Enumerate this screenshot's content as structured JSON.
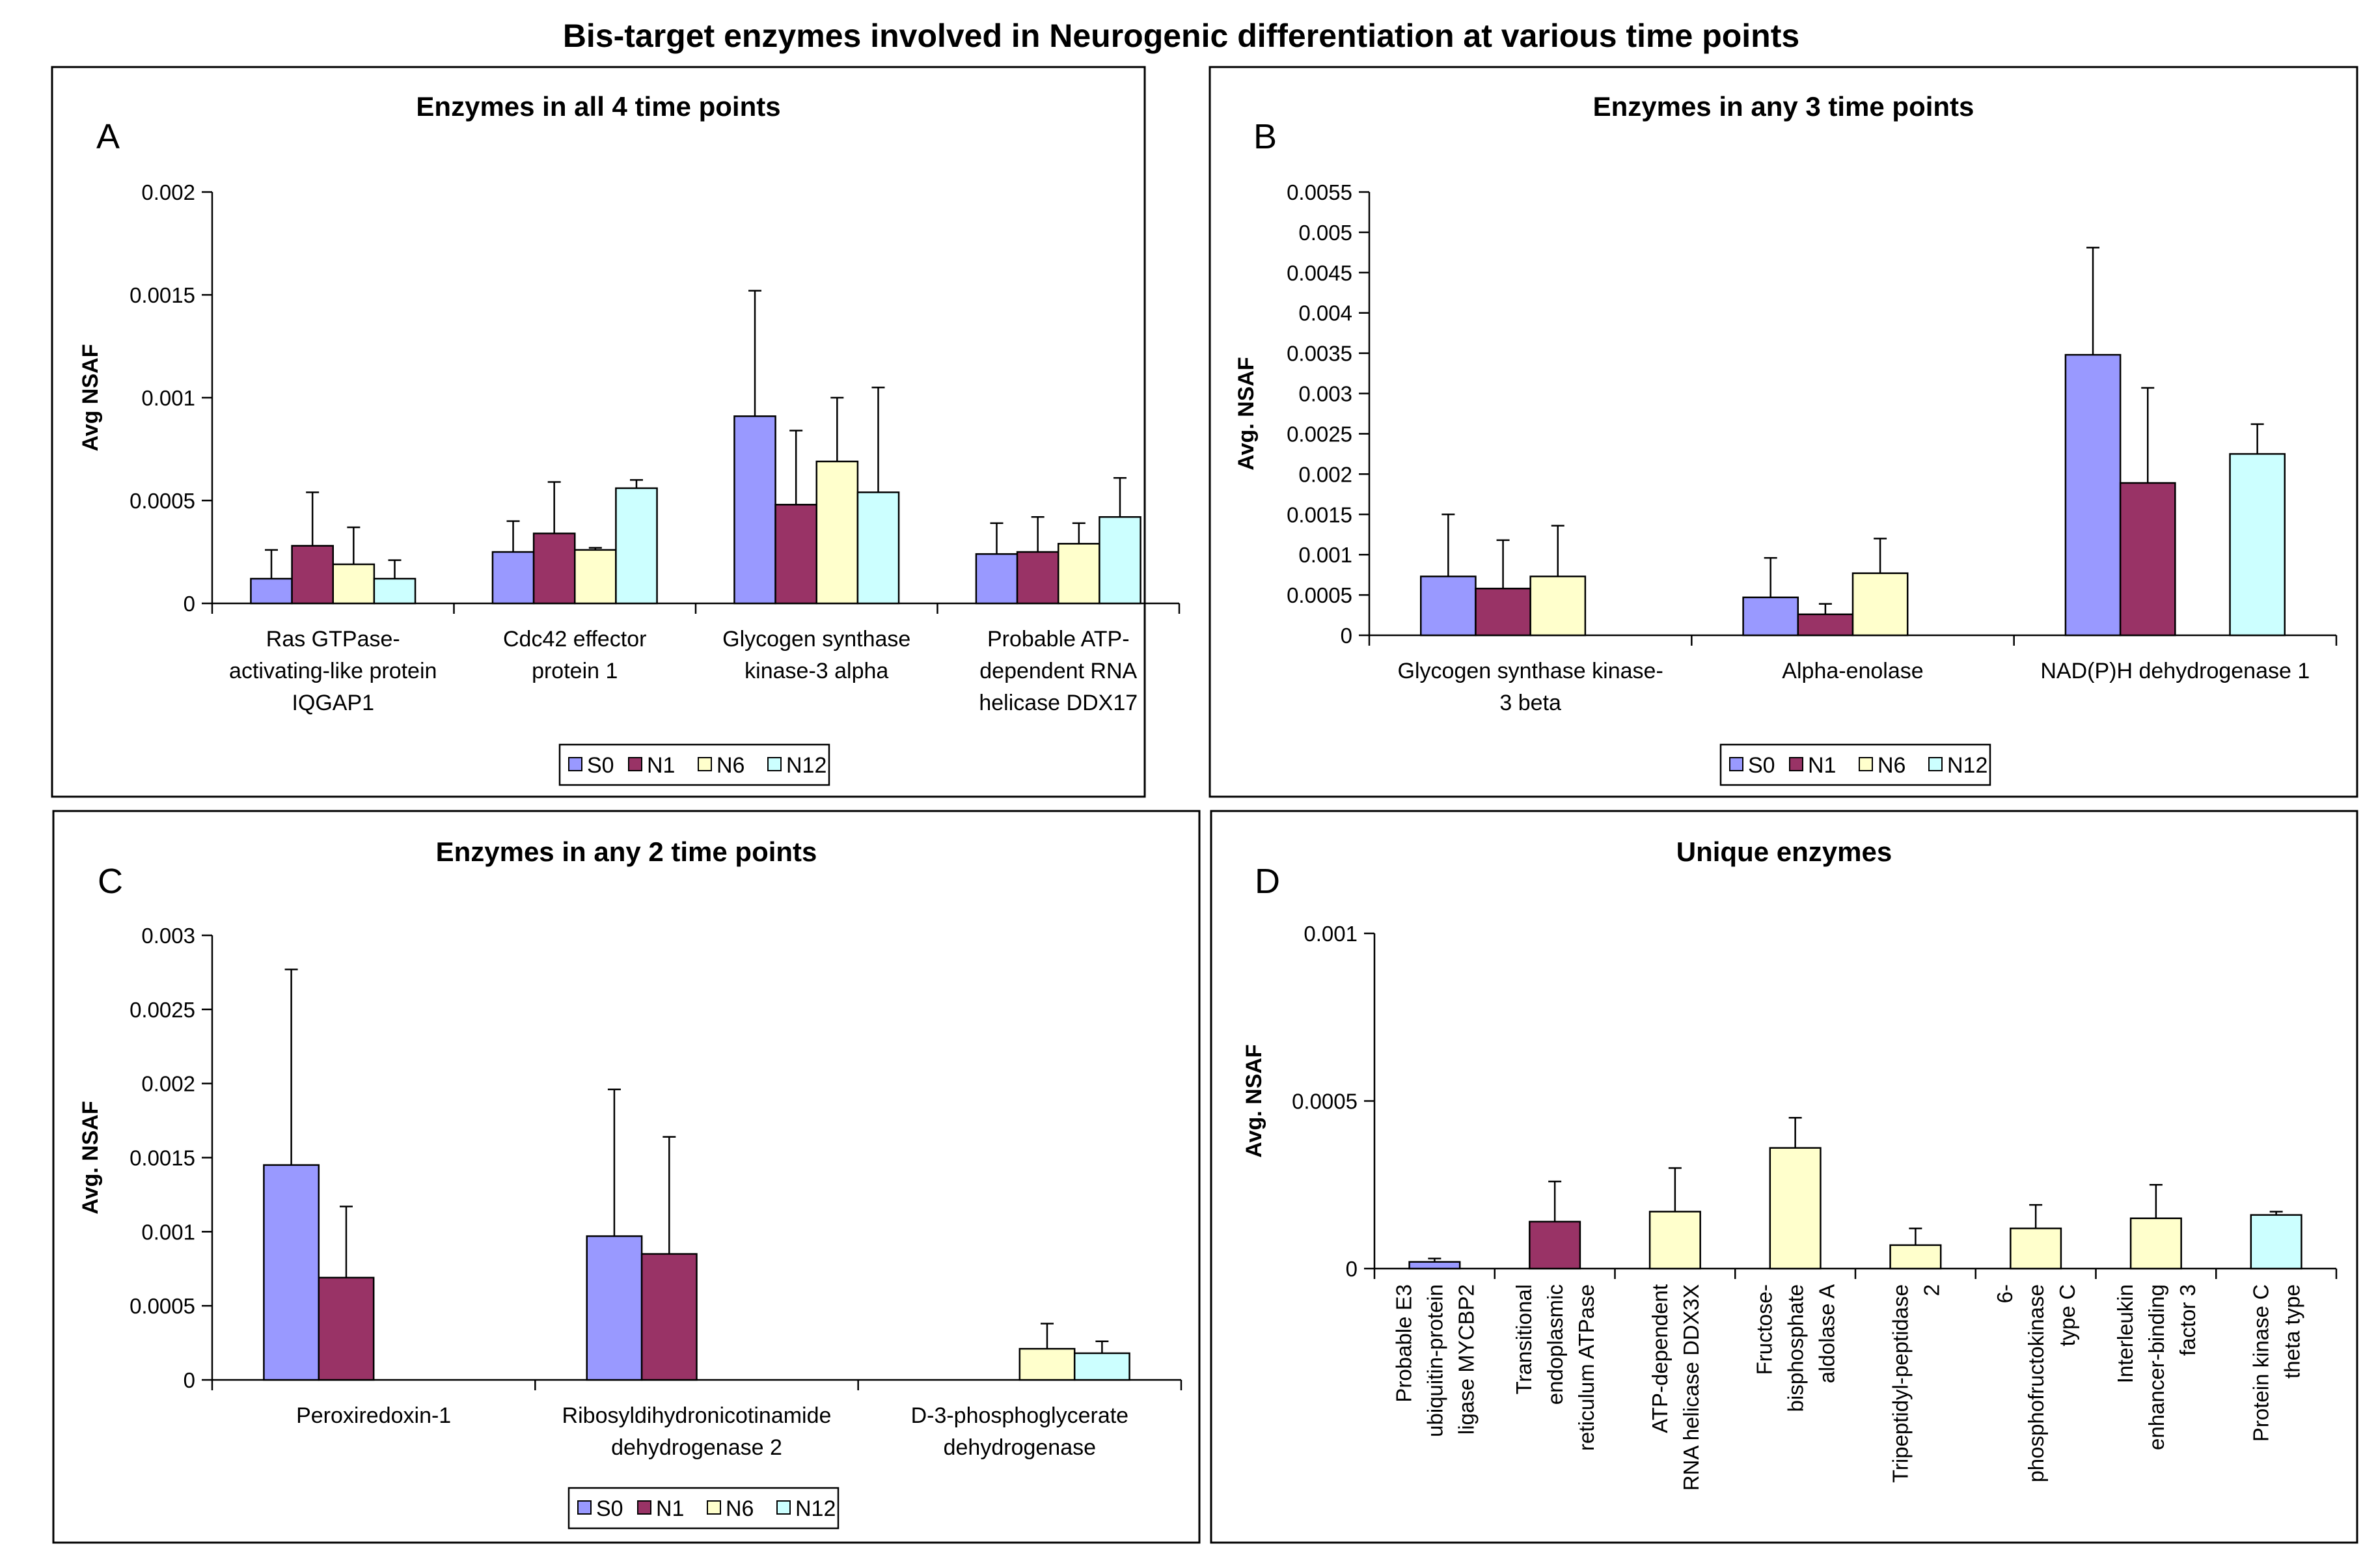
{
  "figure_title": "Bis-target enzymes involved in Neurogenic differentiation at various time points",
  "colors": {
    "S0": "#9999ff",
    "N1": "#993366",
    "N6": "#ffffcc",
    "N12": "#ccffff"
  },
  "chart_data": [
    {
      "id": "A",
      "panel_letter": "A",
      "type": "bar",
      "title": "Enzymes in all 4 time points",
      "ylabel": "Avg NSAF",
      "ylim": [
        0,
        0.002
      ],
      "yticks": [
        "0",
        "0.0005",
        "0.001",
        "0.0015",
        "0.002"
      ],
      "ytick_values": [
        0,
        0.0005,
        0.001,
        0.0015,
        0.002
      ],
      "categories": [
        [
          "Ras GTPase-",
          "activating-like protein",
          "IQGAP1"
        ],
        [
          "Cdc42 effector",
          "protein 1"
        ],
        [
          "Glycogen synthase",
          "kinase-3 alpha"
        ],
        [
          "Probable ATP-",
          "dependent RNA",
          "helicase DDX17"
        ]
      ],
      "series": [
        {
          "name": "S0",
          "values": [
            0.00012,
            0.00025,
            0.00091,
            0.00024
          ],
          "errors": [
            0.00014,
            0.00015,
            0.00061,
            0.00015
          ]
        },
        {
          "name": "N1",
          "values": [
            0.00028,
            0.00034,
            0.00048,
            0.00025
          ],
          "errors": [
            0.00026,
            0.00025,
            0.00036,
            0.00017
          ]
        },
        {
          "name": "N6",
          "values": [
            0.00019,
            0.00026,
            0.00069,
            0.00029
          ],
          "errors": [
            0.00018,
            1e-05,
            0.00031,
            0.0001
          ]
        },
        {
          "name": "N12",
          "values": [
            0.00012,
            0.00056,
            0.00054,
            0.00042
          ],
          "errors": [
            9e-05,
            4e-05,
            0.00051,
            0.00019
          ]
        }
      ],
      "legend": [
        "S0",
        "N1",
        "N6",
        "N12"
      ]
    },
    {
      "id": "B",
      "panel_letter": "B",
      "type": "bar",
      "title": "Enzymes in any 3 time points",
      "ylabel": "Avg. NSAF",
      "ylim": [
        0,
        0.0055
      ],
      "yticks": [
        "0",
        "0.0005",
        "0.001",
        "0.0015",
        "0.002",
        "0.0025",
        "0.003",
        "0.0035",
        "0.004",
        "0.0045",
        "0.005",
        "0.0055"
      ],
      "ytick_values": [
        0,
        0.0005,
        0.001,
        0.0015,
        0.002,
        0.0025,
        0.003,
        0.0035,
        0.004,
        0.0045,
        0.005,
        0.0055
      ],
      "categories": [
        [
          "Glycogen synthase kinase-",
          "3 beta"
        ],
        [
          "Alpha-enolase"
        ],
        [
          "NAD(P)H dehydrogenase 1"
        ]
      ],
      "series": [
        {
          "name": "S0",
          "values": [
            0.00073,
            0.00047,
            0.00348
          ],
          "errors": [
            0.00077,
            0.00049,
            0.00133
          ]
        },
        {
          "name": "N1",
          "values": [
            0.00058,
            0.00026,
            0.00189
          ],
          "errors": [
            0.0006,
            0.00013,
            0.00118
          ]
        },
        {
          "name": "N6",
          "values": [
            0.00073,
            0.00077,
            null
          ],
          "errors": [
            0.00063,
            0.00043,
            null
          ]
        },
        {
          "name": "N12",
          "values": [
            null,
            null,
            0.00225
          ],
          "errors": [
            null,
            null,
            0.00037
          ]
        }
      ],
      "legend": [
        "S0",
        "N1",
        "N6",
        "N12"
      ]
    },
    {
      "id": "C",
      "panel_letter": "C",
      "type": "bar",
      "title": "Enzymes in any 2 time points",
      "ylabel": "Avg. NSAF",
      "ylim": [
        0,
        0.003
      ],
      "yticks": [
        "0",
        "0.0005",
        "0.001",
        "0.0015",
        "0.002",
        "0.0025",
        "0.003"
      ],
      "ytick_values": [
        0,
        0.0005,
        0.001,
        0.0015,
        0.002,
        0.0025,
        0.003
      ],
      "categories": [
        [
          "Peroxiredoxin-1"
        ],
        [
          "Ribosyldihydronicotinamide",
          "dehydrogenase 2"
        ],
        [
          "D-3-phosphoglycerate",
          "dehydrogenase"
        ]
      ],
      "series": [
        {
          "name": "S0",
          "values": [
            0.00145,
            0.00097,
            null
          ],
          "errors": [
            0.00132,
            0.00099,
            null
          ]
        },
        {
          "name": "N1",
          "values": [
            0.00069,
            0.00085,
            null
          ],
          "errors": [
            0.00048,
            0.00079,
            null
          ]
        },
        {
          "name": "N6",
          "values": [
            null,
            null,
            0.00021
          ],
          "errors": [
            null,
            null,
            0.00017
          ]
        },
        {
          "name": "N12",
          "values": [
            null,
            null,
            0.00018
          ],
          "errors": [
            null,
            null,
            8e-05
          ]
        }
      ],
      "legend": [
        "S0",
        "N1",
        "N6",
        "N12"
      ]
    },
    {
      "id": "D",
      "panel_letter": "D",
      "type": "bar",
      "title": "Unique enzymes",
      "ylabel": "Avg. NSAF",
      "ylim": [
        0,
        0.001
      ],
      "yticks": [
        "0",
        "0.0005",
        "0.001"
      ],
      "ytick_values": [
        0,
        0.0005,
        0.001
      ],
      "categories": [
        [
          "Probable E3",
          "ubiquitin-protein",
          "ligase MYCBP2"
        ],
        [
          "Transitional",
          "endoplasmic",
          "reticulum ATPase"
        ],
        [
          "ATP-dependent",
          "RNA helicase DDX3X"
        ],
        [
          "Fructose-",
          "bisphosphate",
          "aldolase A"
        ],
        [
          "Tripeptidyl-peptidase",
          "2"
        ],
        [
          "6-",
          "phosphofructokinase",
          "type C"
        ],
        [
          "Interleukin",
          "enhancer-binding",
          "factor 3"
        ],
        [
          "Protein kinase C",
          "theta type"
        ]
      ],
      "bars": [
        {
          "series": "S0",
          "value": 2e-05,
          "error": 1e-05
        },
        {
          "series": "N1",
          "value": 0.00014,
          "error": 0.00012
        },
        {
          "series": "N6",
          "value": 0.00017,
          "error": 0.00013
        },
        {
          "series": "N6",
          "value": 0.00036,
          "error": 9e-05
        },
        {
          "series": "N6",
          "value": 7e-05,
          "error": 5e-05
        },
        {
          "series": "N6",
          "value": 0.00012,
          "error": 7e-05
        },
        {
          "series": "N6",
          "value": 0.00015,
          "error": 0.0001
        },
        {
          "series": "N12",
          "value": 0.00016,
          "error": 1e-05
        }
      ]
    }
  ]
}
